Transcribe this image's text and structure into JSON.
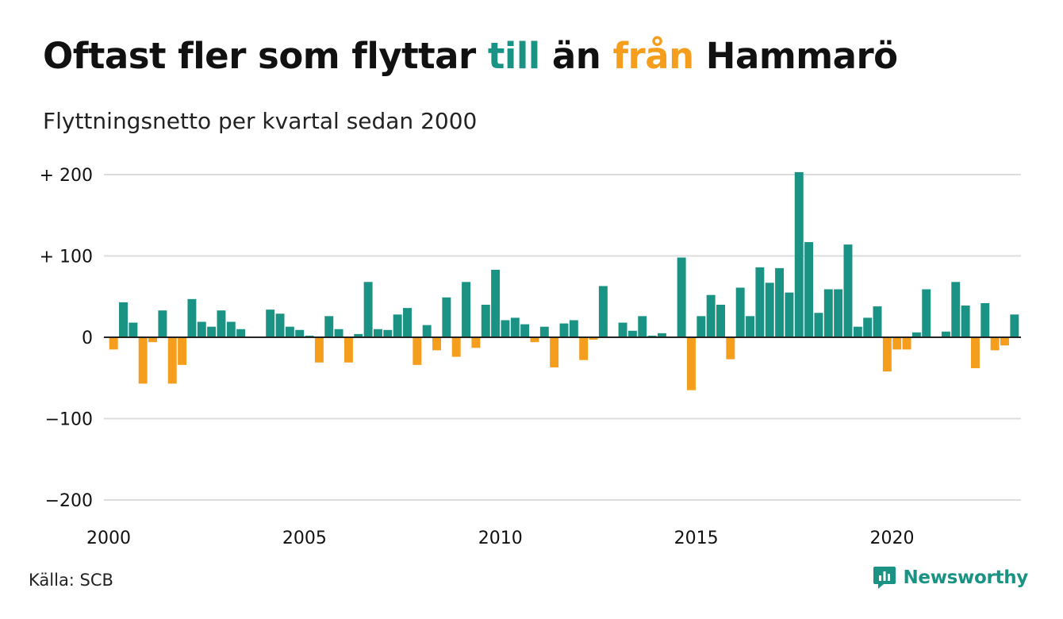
{
  "title": {
    "part1": "Oftast fler som flyttar ",
    "till": "till",
    "part2": " än ",
    "fran": "från",
    "part3": " Hammarö"
  },
  "subtitle": "Flyttningsnetto per kvartal sedan 2000",
  "source": "Källa: SCB",
  "brand": {
    "name": "Newsworthy",
    "logo_icon": "speech-bubble-bar-chart-icon",
    "color": "#1a9384"
  },
  "colors": {
    "positive": "#1a9384",
    "negative": "#f59d1c",
    "grid": "#dddddd",
    "axis": "#222222",
    "text": "#111111"
  },
  "chart_data": {
    "type": "bar",
    "title": "Oftast fler som flyttar till än från Hammarö",
    "subtitle": "Flyttningsnetto per kvartal sedan 2000",
    "xlabel": "",
    "ylabel": "",
    "ylim": [
      -200,
      200
    ],
    "y_ticks": [
      200,
      100,
      0,
      -100,
      -200
    ],
    "y_tick_labels": [
      "+ 200",
      "+ 100",
      "0",
      "−100",
      "−200"
    ],
    "x_range": [
      2000,
      2023.25
    ],
    "x_ticks": [
      2000,
      2005,
      2010,
      2015,
      2020
    ],
    "x_tick_labels": [
      "2000",
      "2005",
      "2010",
      "2015",
      "2020"
    ],
    "grid": true,
    "series": [
      {
        "values": [
          -15,
          43,
          18,
          -57,
          -6,
          33,
          -57,
          -34,
          47,
          19,
          13,
          33,
          19,
          10,
          0,
          0,
          34,
          29,
          13,
          9,
          2,
          -31,
          26,
          10,
          -31,
          4,
          68,
          10,
          9,
          28,
          36,
          -34,
          15,
          -16,
          49,
          -24,
          68,
          -13,
          40,
          83,
          21,
          24,
          16,
          -6,
          13,
          -37,
          17,
          21,
          -28,
          -3,
          63,
          0,
          18,
          8,
          26,
          2,
          5,
          0,
          98,
          -65,
          26,
          52,
          40,
          -27,
          61,
          26,
          86,
          67,
          85,
          55,
          203,
          117,
          30,
          59,
          59,
          114,
          13,
          24,
          38,
          -42,
          -15,
          -15,
          6,
          59,
          0,
          7,
          68,
          39,
          -38,
          42,
          -16,
          -10,
          28
        ]
      }
    ]
  }
}
